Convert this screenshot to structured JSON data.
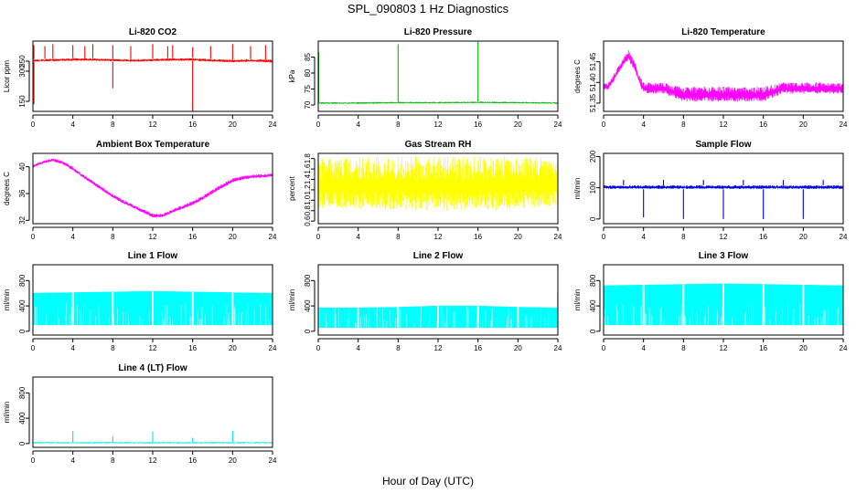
{
  "figure": {
    "title": "SPL_090803  1 Hz Diagnostics",
    "xlabel": "Hour of Day (UTC)"
  },
  "chart_data": [
    {
      "type": "line",
      "title": "Li-820 CO2",
      "ylabel": "Licor ppm",
      "color": "#ff0000",
      "xlim": [
        0,
        24
      ],
      "ylim": [
        100,
        450
      ],
      "xticks": [
        "0",
        "4",
        "8",
        "12",
        "16",
        "20",
        "24"
      ],
      "yticks": [
        "150",
        "300",
        "350"
      ],
      "ytick_values": [
        150,
        300,
        350
      ],
      "band": {
        "x": [
          0,
          2,
          4,
          6,
          8,
          10,
          12,
          14,
          16,
          18,
          20,
          22,
          24
        ],
        "low": [
          345,
          348,
          350,
          350,
          348,
          345,
          348,
          350,
          350,
          345,
          343,
          345,
          340
        ],
        "high": [
          360,
          362,
          365,
          365,
          362,
          360,
          362,
          365,
          366,
          360,
          358,
          360,
          358
        ]
      },
      "spikes": [
        {
          "x": 0.1,
          "y": 430
        },
        {
          "x": 1.2,
          "y": 425
        },
        {
          "x": 2,
          "y": 435
        },
        {
          "x": 4,
          "y": 430
        },
        {
          "x": 5.2,
          "y": 425
        },
        {
          "x": 6,
          "y": 435
        },
        {
          "x": 8,
          "y": 430
        },
        {
          "x": 9.8,
          "y": 425
        },
        {
          "x": 12,
          "y": 435
        },
        {
          "x": 13.5,
          "y": 425
        },
        {
          "x": 14,
          "y": 430
        },
        {
          "x": 16,
          "y": 420
        },
        {
          "x": 17.8,
          "y": 425
        },
        {
          "x": 20,
          "y": 435
        },
        {
          "x": 21.8,
          "y": 425
        },
        {
          "x": 23.3,
          "y": 430
        },
        {
          "x": 24,
          "y": 420
        }
      ],
      "dips": [
        {
          "x": 0.1,
          "y": 135
        },
        {
          "x": 8,
          "y": 215
        },
        {
          "x": 16,
          "y": 100
        }
      ]
    },
    {
      "type": "line",
      "title": "Li-820 Pressure",
      "ylabel": "kPa",
      "color": "#00bb00",
      "xlim": [
        0,
        24
      ],
      "ylim": [
        68,
        90
      ],
      "xticks": [
        "0",
        "4",
        "8",
        "12",
        "16",
        "20",
        "24"
      ],
      "yticks": [
        "70",
        "75",
        "80",
        "85"
      ],
      "ytick_values": [
        70,
        75,
        80,
        85
      ],
      "band": {
        "x": [
          0,
          4,
          8,
          12,
          16,
          20,
          24
        ],
        "low": [
          70.3,
          70.3,
          70.4,
          70.4,
          70.5,
          70.4,
          70.3
        ],
        "high": [
          70.9,
          70.9,
          71.0,
          71.0,
          71.1,
          71.0,
          70.9
        ]
      },
      "spikes": [
        {
          "x": 0.05,
          "y": 86.5
        },
        {
          "x": 8,
          "y": 89
        },
        {
          "x": 16,
          "y": 89.8
        },
        {
          "x": 24,
          "y": 89.8
        }
      ],
      "dips": []
    },
    {
      "type": "line",
      "title": "Li-820 Temperature",
      "ylabel": "degrees C",
      "color": "#ff00ff",
      "xlim": [
        0,
        24
      ],
      "ylim": [
        51.33,
        51.5
      ],
      "xticks": [
        "0",
        "4",
        "8",
        "12",
        "16",
        "20",
        "24"
      ],
      "yticks": [
        "51.35",
        "51.40",
        "51.45"
      ],
      "ytick_values": [
        51.35,
        51.4,
        51.45
      ],
      "band": {
        "x": [
          0,
          0.5,
          1,
          1.5,
          2,
          2.5,
          3,
          3.5,
          4,
          6,
          8,
          10,
          12,
          14,
          16,
          18,
          20,
          22,
          24
        ],
        "low": [
          51.38,
          51.38,
          51.4,
          51.42,
          51.44,
          51.45,
          51.43,
          51.4,
          51.37,
          51.37,
          51.35,
          51.35,
          51.35,
          51.35,
          51.35,
          51.37,
          51.37,
          51.37,
          51.37
        ],
        "high": [
          51.4,
          51.4,
          51.42,
          51.44,
          51.46,
          51.48,
          51.46,
          51.42,
          51.4,
          51.4,
          51.39,
          51.39,
          51.39,
          51.39,
          51.39,
          51.4,
          51.4,
          51.4,
          51.4
        ]
      },
      "spikes": [],
      "dips": []
    },
    {
      "type": "line",
      "title": "Ambient Box Temperature",
      "ylabel": "degrees C",
      "color": "#ff00ff",
      "xlim": [
        0,
        24
      ],
      "ylim": [
        31.5,
        42
      ],
      "xticks": [
        "0",
        "4",
        "8",
        "12",
        "16",
        "20",
        "24"
      ],
      "yticks": [
        "32",
        "36",
        "40"
      ],
      "ytick_values": [
        32,
        36,
        40
      ],
      "band": {
        "x": [
          0,
          1,
          2,
          3,
          4,
          5,
          6,
          7,
          8,
          9,
          10,
          11,
          12,
          13,
          14,
          15,
          16,
          17,
          18,
          19,
          20,
          21,
          22,
          23,
          24
        ],
        "low": [
          39.8,
          40.4,
          40.7,
          40.3,
          39.4,
          38.3,
          37.3,
          36.3,
          35.3,
          34.5,
          33.8,
          33.1,
          32.3,
          32.4,
          33.1,
          33.6,
          34.2,
          35.0,
          35.9,
          36.8,
          37.6,
          38.0,
          38.2,
          38.3,
          38.5
        ],
        "high": [
          40.3,
          40.9,
          41.3,
          40.9,
          40.0,
          38.9,
          37.9,
          36.9,
          35.9,
          35.1,
          34.4,
          33.7,
          33.0,
          33.0,
          33.7,
          34.3,
          34.9,
          35.7,
          36.6,
          37.5,
          38.3,
          38.6,
          38.8,
          38.9,
          39.0
        ]
      },
      "spikes": [],
      "dips": []
    },
    {
      "type": "line",
      "title": "Gas Stream RH",
      "ylabel": "percent",
      "color": "#ffff00",
      "xlim": [
        0,
        24
      ],
      "ylim": [
        0.55,
        1.9
      ],
      "xticks": [
        "0",
        "4",
        "8",
        "12",
        "16",
        "20",
        "24"
      ],
      "yticks": [
        "0.6",
        "0.8",
        "1.0",
        "1.2",
        "1.4",
        "1.6",
        "1.8"
      ],
      "ytick_values": [
        0.6,
        0.8,
        1.0,
        1.2,
        1.4,
        1.6,
        1.8
      ],
      "band": {
        "x": [
          0,
          4,
          8,
          12,
          16,
          20,
          24
        ],
        "low": [
          0.75,
          0.72,
          0.7,
          0.68,
          0.68,
          0.72,
          0.78
        ],
        "high": [
          1.8,
          1.82,
          1.84,
          1.86,
          1.86,
          1.84,
          1.82
        ]
      },
      "spikes": [],
      "dips": []
    },
    {
      "type": "line",
      "title": "Sample Flow",
      "ylabel": "ml/min",
      "color": "#0000dd",
      "xlim": [
        0,
        24
      ],
      "ylim": [
        -15,
        210
      ],
      "xticks": [
        "0",
        "4",
        "8",
        "12",
        "16",
        "20",
        "24"
      ],
      "yticks": [
        "0",
        "100",
        "200"
      ],
      "ytick_values": [
        0,
        100,
        200
      ],
      "band": {
        "x": [
          0,
          4,
          8,
          12,
          16,
          20,
          24
        ],
        "low": [
          95,
          95,
          95,
          95,
          95,
          95,
          95
        ],
        "high": [
          108,
          108,
          108,
          108,
          108,
          108,
          108
        ]
      },
      "spikes": [
        {
          "x": 2,
          "y": 125
        },
        {
          "x": 6,
          "y": 125
        },
        {
          "x": 10,
          "y": 125
        },
        {
          "x": 14,
          "y": 125
        },
        {
          "x": 18,
          "y": 125
        },
        {
          "x": 22,
          "y": 125
        }
      ],
      "dips": [
        {
          "x": 4,
          "y": 5
        },
        {
          "x": 8,
          "y": 0
        },
        {
          "x": 12,
          "y": 0
        },
        {
          "x": 16,
          "y": 0
        },
        {
          "x": 20,
          "y": 0
        },
        {
          "x": 24,
          "y": 0
        }
      ]
    },
    {
      "type": "area",
      "title": "Line 1 Flow",
      "ylabel": "ml/min",
      "color": "#00ffff",
      "xlim": [
        0,
        24
      ],
      "ylim": [
        -60,
        1050
      ],
      "xticks": [
        "0",
        "4",
        "8",
        "12",
        "16",
        "20",
        "24"
      ],
      "yticks": [
        "0",
        "400",
        "800"
      ],
      "ytick_values": [
        0,
        400,
        800
      ],
      "fill": {
        "x": [
          0,
          4,
          8,
          12,
          16,
          20,
          24
        ],
        "low": [
          100,
          100,
          100,
          100,
          100,
          100,
          100
        ],
        "high": [
          600,
          610,
          620,
          630,
          620,
          610,
          600
        ]
      },
      "gaps": [
        4,
        8,
        12,
        16,
        20
      ]
    },
    {
      "type": "area",
      "title": "Line 2 Flow",
      "ylabel": "ml/min",
      "color": "#00ffff",
      "xlim": [
        0,
        24
      ],
      "ylim": [
        -60,
        1050
      ],
      "xticks": [
        "0",
        "4",
        "8",
        "12",
        "16",
        "20",
        "24"
      ],
      "yticks": [
        "0",
        "400",
        "800"
      ],
      "ytick_values": [
        0,
        400,
        800
      ],
      "fill": {
        "x": [
          0,
          4,
          8,
          12,
          16,
          20,
          24
        ],
        "low": [
          60,
          60,
          60,
          60,
          60,
          60,
          60
        ],
        "high": [
          370,
          370,
          380,
          400,
          400,
          380,
          370
        ]
      },
      "gaps": [
        4,
        8,
        12,
        16,
        20
      ]
    },
    {
      "type": "area",
      "title": "Line 3 Flow",
      "ylabel": "ml/min",
      "color": "#00ffff",
      "xlim": [
        0,
        24
      ],
      "ylim": [
        -60,
        1050
      ],
      "xticks": [
        "0",
        "4",
        "8",
        "12",
        "16",
        "20",
        "24"
      ],
      "yticks": [
        "0",
        "400",
        "800"
      ],
      "ytick_values": [
        0,
        400,
        800
      ],
      "fill": {
        "x": [
          0,
          4,
          8,
          12,
          16,
          20,
          24
        ],
        "low": [
          100,
          100,
          100,
          100,
          100,
          100,
          100
        ],
        "high": [
          720,
          730,
          740,
          750,
          740,
          730,
          720
        ]
      },
      "gaps": [
        4,
        8,
        12,
        16,
        20
      ]
    },
    {
      "type": "line",
      "title": "Line 4 (LT) Flow",
      "ylabel": "ml/min",
      "color": "#00e6e6",
      "xlim": [
        0,
        24
      ],
      "ylim": [
        -60,
        1050
      ],
      "xticks": [
        "0",
        "4",
        "8",
        "12",
        "16",
        "20",
        "24"
      ],
      "yticks": [
        "0",
        "400",
        "800"
      ],
      "ytick_values": [
        0,
        400,
        800
      ],
      "band": {
        "x": [
          0,
          4,
          8,
          12,
          16,
          20,
          24
        ],
        "low": [
          0,
          0,
          0,
          0,
          0,
          0,
          0
        ],
        "high": [
          25,
          25,
          25,
          25,
          25,
          25,
          25
        ]
      },
      "spikes": [
        {
          "x": 4,
          "y": 200
        },
        {
          "x": 8,
          "y": 110
        },
        {
          "x": 12,
          "y": 190
        },
        {
          "x": 16,
          "y": 90
        },
        {
          "x": 20,
          "y": 200
        },
        {
          "x": 24,
          "y": 110
        }
      ],
      "dips": []
    }
  ]
}
